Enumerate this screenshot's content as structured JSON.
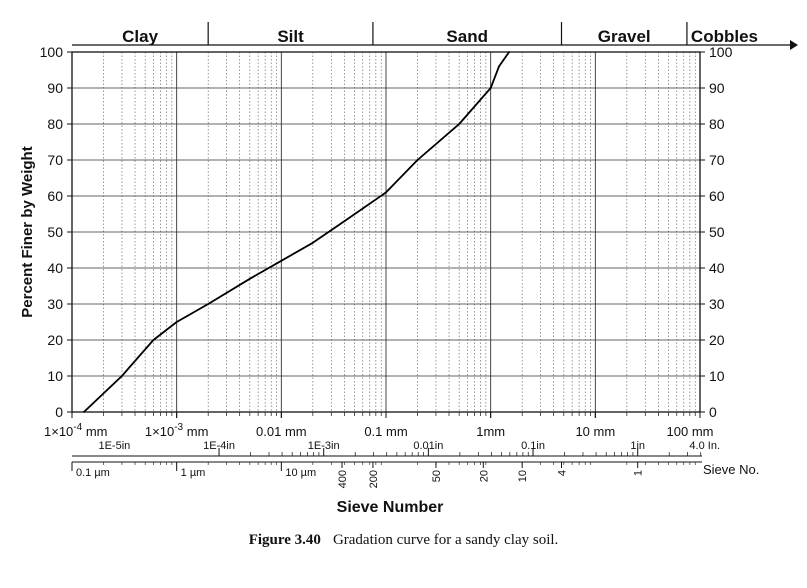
{
  "chart_data": {
    "type": "line",
    "x_scale": "log",
    "xlim_mm": [
      0.0001,
      100
    ],
    "ylim": [
      0,
      100
    ],
    "ylabel": "Percent Finer by Weight",
    "xlabel": "Sieve Number",
    "grid": true,
    "series": [
      {
        "x": [
          0.00013,
          0.0003,
          0.0006,
          0.001,
          0.002,
          0.005,
          0.01,
          0.02,
          0.04,
          0.1,
          0.2,
          0.5,
          1.0,
          1.2,
          1.5
        ],
        "y": [
          0,
          10,
          20,
          25,
          30,
          37,
          42,
          47,
          53,
          61,
          70,
          80,
          90,
          96,
          100
        ]
      }
    ],
    "zones": [
      {
        "label": "Clay",
        "from": 0.0001,
        "to": 0.002
      },
      {
        "label": "Silt",
        "from": 0.002,
        "to": 0.075
      },
      {
        "label": "Sand",
        "from": 0.075,
        "to": 4.75
      },
      {
        "label": "Gravel",
        "from": 4.75,
        "to": 75
      },
      {
        "label": "Cobbles",
        "from": 75,
        "to": 100
      }
    ],
    "y_ticks": [
      "0",
      "10",
      "20",
      "30",
      "40",
      "50",
      "60",
      "70",
      "80",
      "90",
      "100"
    ],
    "mm_ticks": [
      {
        "x": 0.0001,
        "base": "1×10",
        "exp": "-4",
        "unit": " mm"
      },
      {
        "x": 0.001,
        "base": "1×10",
        "exp": "-3",
        "unit": " mm"
      },
      {
        "x": 0.01,
        "label": "0.01 mm"
      },
      {
        "x": 0.1,
        "label": "0.1 mm"
      },
      {
        "x": 1,
        "label": "1mm"
      },
      {
        "x": 10,
        "label": "10 mm"
      },
      {
        "x": 100,
        "label": "100 mm"
      }
    ],
    "inch_ticks": [
      {
        "x": 0.000254,
        "label": "1E-5in"
      },
      {
        "x": 0.00254,
        "label": "1E-4in"
      },
      {
        "x": 0.0254,
        "label": "1E-3in"
      },
      {
        "x": 0.254,
        "label": "0.01in"
      },
      {
        "x": 2.54,
        "label": "0.1in"
      },
      {
        "x": 25.4,
        "label": "1in"
      },
      {
        "x": 101.6,
        "label": "4.0 In."
      }
    ],
    "micron_ticks": [
      {
        "x": 0.0001,
        "label": "0.1 µm"
      },
      {
        "x": 0.001,
        "label": "1 µm"
      },
      {
        "x": 0.01,
        "label": "10 µm"
      }
    ],
    "sieve_ticks": [
      {
        "x": 0.038,
        "label": "400"
      },
      {
        "x": 0.075,
        "label": "200"
      },
      {
        "x": 0.3,
        "label": "50"
      },
      {
        "x": 0.85,
        "label": "20"
      },
      {
        "x": 2.0,
        "label": "10"
      },
      {
        "x": 4.75,
        "label": "4"
      },
      {
        "x": 25.4,
        "label": "1"
      }
    ],
    "sieve_axis_label": "Sieve No."
  },
  "caption": {
    "label": "Figure 3.40",
    "text": "Gradation curve for a sandy clay soil."
  }
}
